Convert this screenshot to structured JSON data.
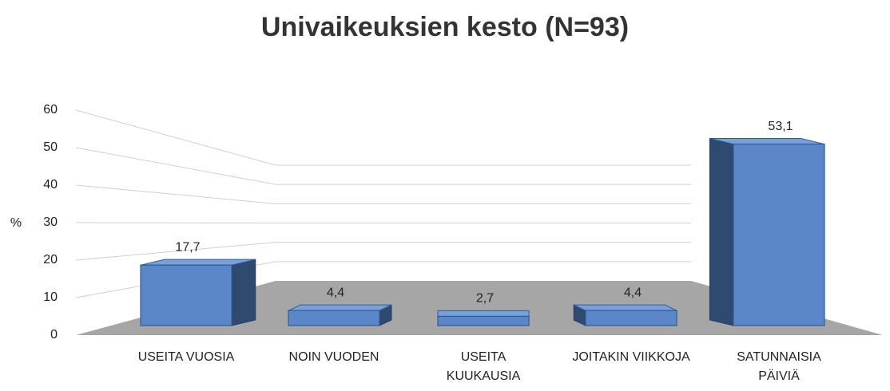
{
  "chart_data": {
    "type": "bar3d",
    "title": "Univaikeuksien kesto (N=93)",
    "y_label": "%",
    "categories": [
      "USEITA VUOSIA",
      "NOIN VUODEN",
      "USEITA\nKUUKAUSIA",
      "JOITAKIN VIIKKOJA",
      "SATUNNAISIA\nPÄIVIÄ"
    ],
    "values": [
      17.7,
      4.4,
      2.7,
      4.4,
      53.1
    ],
    "value_labels": [
      "17,7",
      "4,4",
      "2,7",
      "4,4",
      "53,1"
    ],
    "color": "#5b87c9",
    "ylim": [
      0,
      60
    ],
    "yticks": [
      0,
      10,
      20,
      30,
      40,
      50,
      60
    ],
    "grid": true
  }
}
